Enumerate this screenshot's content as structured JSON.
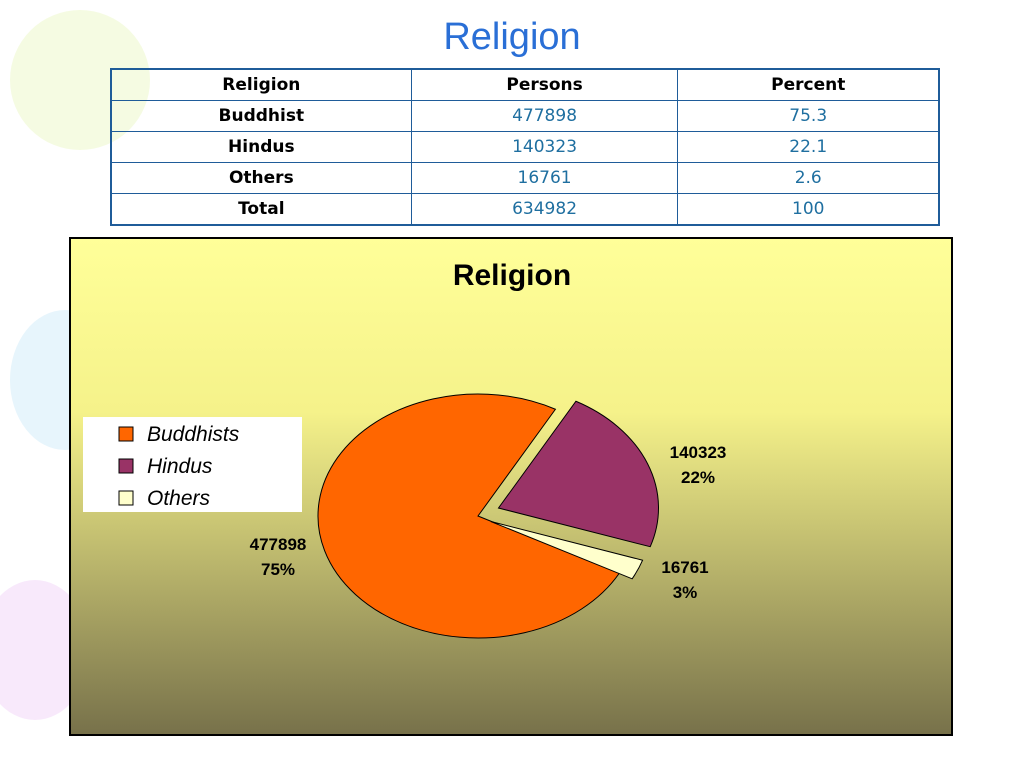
{
  "title": "Religion",
  "table": {
    "header": [
      "Religion",
      "Persons",
      "Percent"
    ],
    "rows": [
      [
        "Buddhist",
        "477898",
        "75.3"
      ],
      [
        "Hindus",
        "140323",
        "22.1"
      ],
      [
        "Others",
        "16761",
        "2.6"
      ],
      [
        "Total",
        "634982",
        "100"
      ]
    ]
  },
  "chart_data": {
    "type": "pie",
    "title": "Religion",
    "categories": [
      "Buddhists",
      "Hindus",
      "Others"
    ],
    "values": [
      477898,
      140323,
      16761
    ],
    "percent_labels": [
      "75%",
      "22%",
      "3%"
    ],
    "colors": [
      "#ff6600",
      "#993366",
      "#ffffcc"
    ],
    "legend": "left"
  }
}
